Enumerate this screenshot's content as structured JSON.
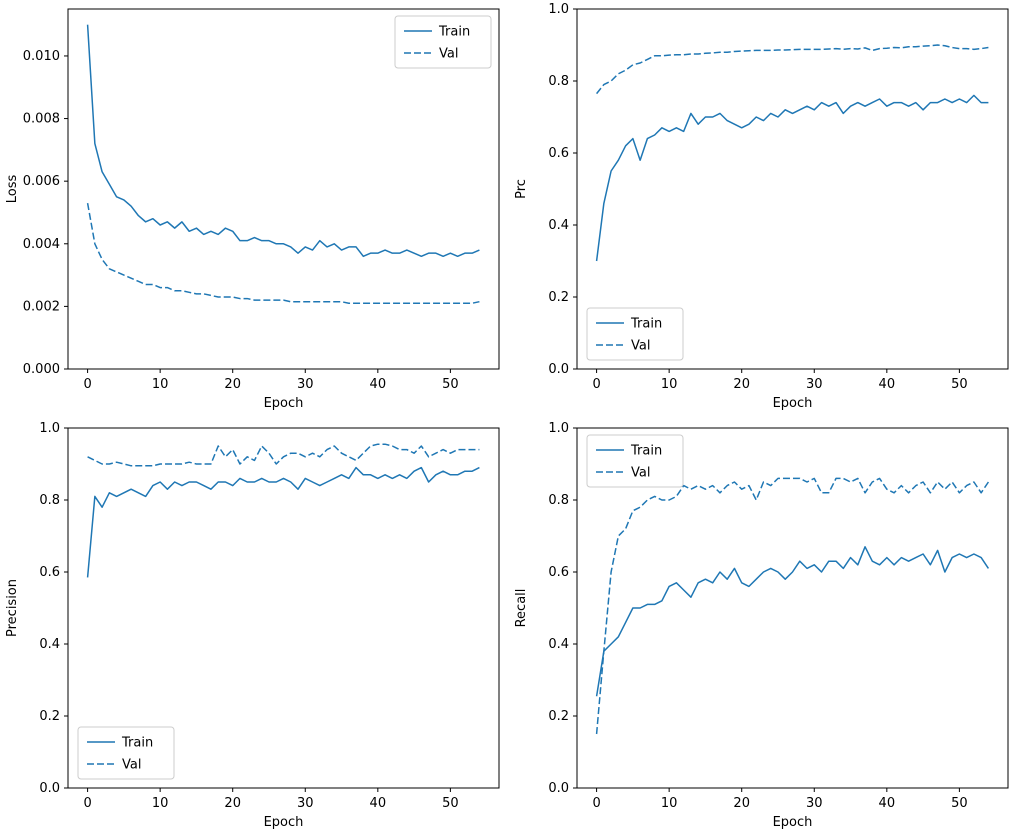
{
  "figure": {
    "background": "#ffffff",
    "line_color": "#1f77b4",
    "legend_entries": [
      "Train",
      "Val"
    ]
  },
  "epochs": [
    0,
    1,
    2,
    3,
    4,
    5,
    6,
    7,
    8,
    9,
    10,
    11,
    12,
    13,
    14,
    15,
    16,
    17,
    18,
    19,
    20,
    21,
    22,
    23,
    24,
    25,
    26,
    27,
    28,
    29,
    30,
    31,
    32,
    33,
    34,
    35,
    36,
    37,
    38,
    39,
    40,
    41,
    42,
    43,
    44,
    45,
    46,
    47,
    48,
    49,
    50,
    51,
    52,
    53,
    54
  ],
  "chart_data": [
    {
      "type": "line",
      "title": "",
      "xlabel": "Epoch",
      "ylabel": "Loss",
      "xlim": [
        -2.7,
        56.7
      ],
      "ylim": [
        0.0,
        0.0115
      ],
      "xticks": [
        0,
        10,
        20,
        30,
        40,
        50
      ],
      "xtick_labels": [
        "0",
        "10",
        "20",
        "30",
        "40",
        "50"
      ],
      "yticks": [
        0.0,
        0.002,
        0.004,
        0.006,
        0.008,
        0.01
      ],
      "ytick_labels": [
        "0.000",
        "0.002",
        "0.004",
        "0.006",
        "0.008",
        "0.010"
      ],
      "grid": false,
      "legend_pos": "upper-right",
      "series": [
        {
          "name": "Train",
          "style": "solid",
          "values": [
            0.011,
            0.0072,
            0.0063,
            0.0059,
            0.0055,
            0.0054,
            0.0052,
            0.0049,
            0.0047,
            0.0048,
            0.0046,
            0.0047,
            0.0045,
            0.0047,
            0.0044,
            0.0045,
            0.0043,
            0.0044,
            0.0043,
            0.0045,
            0.0044,
            0.0041,
            0.0041,
            0.0042,
            0.0041,
            0.0041,
            0.004,
            0.004,
            0.0039,
            0.0037,
            0.0039,
            0.0038,
            0.0041,
            0.0039,
            0.004,
            0.0038,
            0.0039,
            0.0039,
            0.0036,
            0.0037,
            0.0037,
            0.0038,
            0.0037,
            0.0037,
            0.0038,
            0.0037,
            0.0036,
            0.0037,
            0.0037,
            0.0036,
            0.0037,
            0.0036,
            0.0037,
            0.0037,
            0.0038
          ]
        },
        {
          "name": "Val",
          "style": "dashed",
          "values": [
            0.0053,
            0.004,
            0.0035,
            0.0032,
            0.0031,
            0.003,
            0.0029,
            0.0028,
            0.0027,
            0.0027,
            0.0026,
            0.0026,
            0.0025,
            0.0025,
            0.00245,
            0.0024,
            0.0024,
            0.00235,
            0.0023,
            0.0023,
            0.0023,
            0.00225,
            0.00225,
            0.0022,
            0.0022,
            0.0022,
            0.0022,
            0.0022,
            0.00215,
            0.00215,
            0.00215,
            0.00215,
            0.00215,
            0.00215,
            0.00215,
            0.00215,
            0.0021,
            0.0021,
            0.0021,
            0.0021,
            0.0021,
            0.0021,
            0.0021,
            0.0021,
            0.0021,
            0.0021,
            0.0021,
            0.0021,
            0.0021,
            0.0021,
            0.0021,
            0.0021,
            0.0021,
            0.0021,
            0.00215
          ]
        }
      ]
    },
    {
      "type": "line",
      "title": "",
      "xlabel": "Epoch",
      "ylabel": "Prc",
      "xlim": [
        -2.7,
        56.7
      ],
      "ylim": [
        0.0,
        1.0
      ],
      "xticks": [
        0,
        10,
        20,
        30,
        40,
        50
      ],
      "xtick_labels": [
        "0",
        "10",
        "20",
        "30",
        "40",
        "50"
      ],
      "yticks": [
        0.0,
        0.2,
        0.4,
        0.6,
        0.8,
        1.0
      ],
      "ytick_labels": [
        "0.0",
        "0.2",
        "0.4",
        "0.6",
        "0.8",
        "1.0"
      ],
      "grid": false,
      "legend_pos": "lower-left",
      "series": [
        {
          "name": "Train",
          "style": "solid",
          "values": [
            0.3,
            0.46,
            0.55,
            0.58,
            0.62,
            0.64,
            0.58,
            0.64,
            0.65,
            0.67,
            0.66,
            0.67,
            0.66,
            0.71,
            0.68,
            0.7,
            0.7,
            0.71,
            0.69,
            0.68,
            0.67,
            0.68,
            0.7,
            0.69,
            0.71,
            0.7,
            0.72,
            0.71,
            0.72,
            0.73,
            0.72,
            0.74,
            0.73,
            0.74,
            0.71,
            0.73,
            0.74,
            0.73,
            0.74,
            0.75,
            0.73,
            0.74,
            0.74,
            0.73,
            0.74,
            0.72,
            0.74,
            0.74,
            0.75,
            0.74,
            0.75,
            0.74,
            0.76,
            0.74,
            0.74
          ]
        },
        {
          "name": "Val",
          "style": "dashed",
          "values": [
            0.765,
            0.79,
            0.8,
            0.82,
            0.83,
            0.845,
            0.85,
            0.86,
            0.87,
            0.87,
            0.872,
            0.873,
            0.873,
            0.875,
            0.875,
            0.877,
            0.878,
            0.88,
            0.88,
            0.882,
            0.883,
            0.884,
            0.885,
            0.885,
            0.885,
            0.886,
            0.886,
            0.887,
            0.888,
            0.888,
            0.888,
            0.888,
            0.889,
            0.89,
            0.888,
            0.89,
            0.889,
            0.892,
            0.885,
            0.89,
            0.891,
            0.893,
            0.892,
            0.895,
            0.895,
            0.897,
            0.898,
            0.9,
            0.898,
            0.893,
            0.89,
            0.89,
            0.888,
            0.89,
            0.893
          ]
        }
      ]
    },
    {
      "type": "line",
      "title": "",
      "xlabel": "Epoch",
      "ylabel": "Precision",
      "xlim": [
        -2.7,
        56.7
      ],
      "ylim": [
        0.0,
        1.0
      ],
      "xticks": [
        0,
        10,
        20,
        30,
        40,
        50
      ],
      "xtick_labels": [
        "0",
        "10",
        "20",
        "30",
        "40",
        "50"
      ],
      "yticks": [
        0.0,
        0.2,
        0.4,
        0.6,
        0.8,
        1.0
      ],
      "ytick_labels": [
        "0.0",
        "0.2",
        "0.4",
        "0.6",
        "0.8",
        "1.0"
      ],
      "grid": false,
      "legend_pos": "lower-left",
      "series": [
        {
          "name": "Train",
          "style": "solid",
          "values": [
            0.585,
            0.81,
            0.78,
            0.82,
            0.81,
            0.82,
            0.83,
            0.82,
            0.81,
            0.84,
            0.85,
            0.83,
            0.85,
            0.84,
            0.85,
            0.85,
            0.84,
            0.83,
            0.85,
            0.85,
            0.84,
            0.86,
            0.85,
            0.85,
            0.86,
            0.85,
            0.85,
            0.86,
            0.85,
            0.83,
            0.86,
            0.85,
            0.84,
            0.85,
            0.86,
            0.87,
            0.86,
            0.89,
            0.87,
            0.87,
            0.86,
            0.87,
            0.86,
            0.87,
            0.86,
            0.88,
            0.89,
            0.85,
            0.87,
            0.88,
            0.87,
            0.87,
            0.88,
            0.88,
            0.89
          ]
        },
        {
          "name": "Val",
          "style": "dashed",
          "values": [
            0.92,
            0.91,
            0.9,
            0.9,
            0.905,
            0.9,
            0.895,
            0.895,
            0.895,
            0.895,
            0.9,
            0.9,
            0.9,
            0.9,
            0.905,
            0.9,
            0.9,
            0.9,
            0.95,
            0.92,
            0.94,
            0.9,
            0.92,
            0.91,
            0.95,
            0.93,
            0.9,
            0.92,
            0.93,
            0.93,
            0.92,
            0.93,
            0.92,
            0.94,
            0.95,
            0.93,
            0.92,
            0.91,
            0.93,
            0.95,
            0.955,
            0.955,
            0.95,
            0.94,
            0.94,
            0.93,
            0.95,
            0.92,
            0.93,
            0.94,
            0.93,
            0.94,
            0.94,
            0.94,
            0.94
          ]
        }
      ]
    },
    {
      "type": "line",
      "title": "",
      "xlabel": "Epoch",
      "ylabel": "Recall",
      "xlim": [
        -2.7,
        56.7
      ],
      "ylim": [
        0.0,
        1.0
      ],
      "xticks": [
        0,
        10,
        20,
        30,
        40,
        50
      ],
      "xtick_labels": [
        "0",
        "10",
        "20",
        "30",
        "40",
        "50"
      ],
      "yticks": [
        0.0,
        0.2,
        0.4,
        0.6,
        0.8,
        1.0
      ],
      "ytick_labels": [
        "0.0",
        "0.2",
        "0.4",
        "0.6",
        "0.8",
        "1.0"
      ],
      "grid": false,
      "legend_pos": "upper-left",
      "series": [
        {
          "name": "Train",
          "style": "solid",
          "values": [
            0.255,
            0.38,
            0.4,
            0.42,
            0.46,
            0.5,
            0.5,
            0.51,
            0.51,
            0.52,
            0.56,
            0.57,
            0.55,
            0.53,
            0.57,
            0.58,
            0.57,
            0.6,
            0.58,
            0.61,
            0.57,
            0.56,
            0.58,
            0.6,
            0.61,
            0.6,
            0.58,
            0.6,
            0.63,
            0.61,
            0.62,
            0.6,
            0.63,
            0.63,
            0.61,
            0.64,
            0.62,
            0.67,
            0.63,
            0.62,
            0.64,
            0.62,
            0.64,
            0.63,
            0.64,
            0.65,
            0.62,
            0.66,
            0.6,
            0.64,
            0.65,
            0.64,
            0.65,
            0.64,
            0.61
          ]
        },
        {
          "name": "Val",
          "style": "dashed",
          "values": [
            0.15,
            0.38,
            0.6,
            0.7,
            0.72,
            0.77,
            0.78,
            0.8,
            0.81,
            0.8,
            0.8,
            0.81,
            0.84,
            0.83,
            0.84,
            0.83,
            0.84,
            0.82,
            0.84,
            0.85,
            0.83,
            0.84,
            0.8,
            0.85,
            0.84,
            0.86,
            0.86,
            0.86,
            0.86,
            0.85,
            0.86,
            0.82,
            0.82,
            0.86,
            0.86,
            0.85,
            0.86,
            0.82,
            0.85,
            0.86,
            0.83,
            0.82,
            0.84,
            0.82,
            0.84,
            0.85,
            0.82,
            0.85,
            0.83,
            0.85,
            0.82,
            0.84,
            0.85,
            0.82,
            0.85
          ]
        }
      ]
    }
  ]
}
